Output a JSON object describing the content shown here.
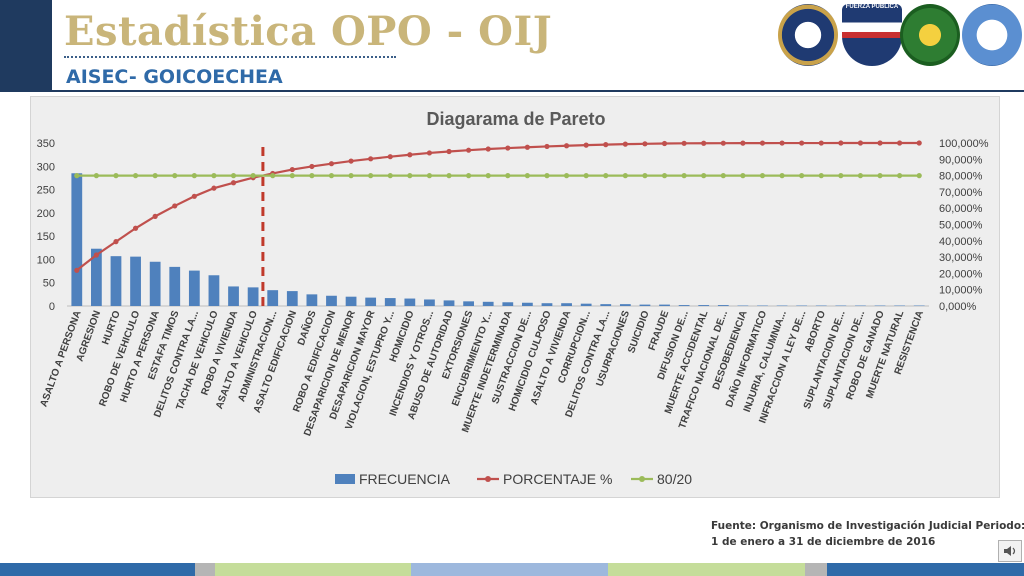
{
  "header": {
    "title": "Estadística OPO - OIJ",
    "subtitle": "AISEC- GOICOECHEA",
    "logos": [
      "us-embassy-seal",
      "fuerza-publica-shield",
      "police-emblem",
      "aisec-emblem"
    ],
    "logo_2_text": "FUERZA PUBLICA"
  },
  "chart_data": {
    "type": "bar",
    "title": "Diagarama de Pareto",
    "categories": [
      "ASALTO A PERSONA",
      "AGRESION",
      "HURTO",
      "ROBO DE VEHICULO",
      "HURTO A PERSONA",
      "ESTAFA TIMOS",
      "DELITOS CONTRA LA...",
      "TACHA DE VEHICULO",
      "ROBO A VIVIENDA",
      "ASALTO A VEHICULO",
      "ADMINISTRACION...",
      "ASALTO EDIFICACION",
      "DAÑOS",
      "ROBO A EDIFICACION",
      "DESAPARICION DE MENOR",
      "DESAPARICION MAYOR",
      "VIOLACION, ESTUPRO Y...",
      "HOMICIDIO",
      "INCENDIOS Y OTROS...",
      "ABUSO DE AUTORIDAD",
      "EXTORSIONES",
      "ENCUBRIMIENTO Y...",
      "MUERTE INDETERMINADA",
      "SUSTRACCION DE...",
      "HOMICIDIO CULPOSO",
      "ASALTO A VIVIENDA",
      "CORRUPCION...",
      "DELITOS CONTRA LA...",
      "USURPACIONES",
      "SUICIDIO",
      "FRAUDE",
      "DIFUSION DE...",
      "MUERTE ACCIDENTAL",
      "TRAFICO NACIONAL DE...",
      "DESOBEDIENCIA",
      "DAÑO INFORMATICO",
      "INJURIA, CALUMNIA...",
      "INFRACCION A LEY DE...",
      "ABORTO",
      "SUPLANTACION DE...",
      "SUPLANTACION DE...",
      "ROBO DE GANADO",
      "MUERTE NATURAL",
      "RESISTENCIA"
    ],
    "series": [
      {
        "name": "FRECUENCIA",
        "axis": "left",
        "color": "#4f81bd",
        "values": [
          285,
          123,
          107,
          106,
          95,
          84,
          76,
          66,
          42,
          40,
          34,
          32,
          25,
          22,
          20,
          18,
          17,
          16,
          14,
          12,
          10,
          9,
          8,
          7,
          6,
          6,
          5,
          4,
          4,
          3,
          3,
          2,
          2,
          2,
          1,
          1,
          1,
          1,
          1,
          1,
          1,
          1,
          1,
          1
        ]
      },
      {
        "name": "PORCENTAJE %",
        "axis": "right",
        "color": "#c0504d",
        "values": [
          21.9,
          31.3,
          39.5,
          47.7,
          55.0,
          61.4,
          67.3,
          72.3,
          75.6,
          78.7,
          81.3,
          83.7,
          85.6,
          87.3,
          88.9,
          90.3,
          91.6,
          92.8,
          93.9,
          94.8,
          95.6,
          96.3,
          96.9,
          97.4,
          97.9,
          98.3,
          98.7,
          99.0,
          99.3,
          99.5,
          99.7,
          99.8,
          99.85,
          99.9,
          99.92,
          99.94,
          99.95,
          99.96,
          99.97,
          99.98,
          99.99,
          99.99,
          100.0,
          100.0
        ]
      },
      {
        "name": "80/20",
        "axis": "right",
        "color": "#9bbb59",
        "values": [
          80,
          80,
          80,
          80,
          80,
          80,
          80,
          80,
          80,
          80,
          80,
          80,
          80,
          80,
          80,
          80,
          80,
          80,
          80,
          80,
          80,
          80,
          80,
          80,
          80,
          80,
          80,
          80,
          80,
          80,
          80,
          80,
          80,
          80,
          80,
          80,
          80,
          80,
          80,
          80,
          80,
          80,
          80,
          80
        ]
      }
    ],
    "y_left": {
      "min": 0,
      "max": 350,
      "ticks": [
        "0",
        "50",
        "100",
        "150",
        "200",
        "250",
        "300",
        "350"
      ]
    },
    "y_right": {
      "min": 0,
      "max": 100,
      "ticks": [
        "0,000%",
        "10,000%",
        "20,000%",
        "30,000%",
        "40,000%",
        "50,000%",
        "60,000%",
        "70,000%",
        "80,000%",
        "90,000%",
        "100,000%"
      ]
    },
    "cutoff_after_category": "ASALTO A VEHICULO",
    "cutoff_color": "#c0392b",
    "legend_position": "bottom",
    "grid": false
  },
  "source": {
    "line1": "Fuente: Organismo de Investigación Judicial Periodo:",
    "line2": "1 de enero a 31 de diciembre de 2016"
  },
  "footer_colors": [
    "#2f6aa8",
    "#b5b5b5",
    "#c5dd9a",
    "#9db8dd",
    "#c5dd9a",
    "#b5b5b5",
    "#2f6aa8"
  ],
  "nav": {
    "icon": "speaker-icon"
  }
}
